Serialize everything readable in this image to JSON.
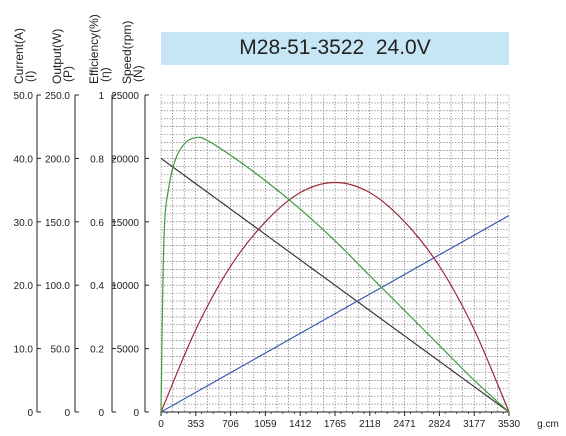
{
  "chart_data": {
    "type": "line",
    "title": "M28-51-3522  24.0V",
    "xlabel": "g.cm",
    "x_ticks": [
      "0",
      "353",
      "706",
      "1059",
      "1412",
      "1765",
      "2118",
      "2471",
      "2824",
      "3177",
      "3530"
    ],
    "xlim": [
      0,
      3530
    ],
    "grid": true,
    "axes": [
      {
        "label": "Current(A)",
        "symbol": "(I)",
        "ticks": [
          "0",
          "10.0",
          "20.0",
          "30.0",
          "40.0",
          "50.0"
        ],
        "range": [
          0,
          50
        ]
      },
      {
        "label": "Output(W)",
        "symbol": "(P)",
        "ticks": [
          "0",
          "50.0",
          "100.0",
          "150.0",
          "200.0",
          "250.0"
        ],
        "range": [
          0,
          250
        ]
      },
      {
        "label": "Efficiency(%)",
        "symbol": "(η)",
        "ticks": [
          "0",
          "0.2",
          "0.4",
          "0.6",
          "0.8",
          "1"
        ],
        "range": [
          0,
          1
        ]
      },
      {
        "label": "Speed(rpm)",
        "symbol": "(N)",
        "ticks": [
          "0",
          "5000",
          "10000",
          "15000",
          "20000",
          "25000"
        ],
        "range": [
          0,
          25000
        ]
      }
    ],
    "series": [
      {
        "key": "speed",
        "color": "#3a3a3a",
        "axis": 3,
        "x": [
          0,
          3530
        ],
        "y": [
          20000,
          0
        ]
      },
      {
        "key": "current",
        "color": "#3b5bb5",
        "axis": 0,
        "x": [
          0,
          3530
        ],
        "y": [
          0,
          31
        ]
      },
      {
        "key": "output",
        "color": "#9b2c3b",
        "axis": 1,
        "x": [
          0,
          353,
          706,
          1059,
          1412,
          1765,
          2118,
          2471,
          2824,
          3177,
          3530
        ],
        "y": [
          0,
          65,
          115,
          150,
          173,
          181,
          173,
          150,
          115,
          65,
          0
        ]
      },
      {
        "key": "efficiency",
        "color": "#3e9a3e",
        "axis": 2,
        "x": [
          0,
          30,
          80,
          150,
          250,
          350,
          450,
          706,
          1059,
          1412,
          1765,
          2118,
          2471,
          2824,
          3177,
          3530
        ],
        "y": [
          0,
          0.55,
          0.71,
          0.8,
          0.85,
          0.865,
          0.86,
          0.81,
          0.73,
          0.64,
          0.54,
          0.43,
          0.32,
          0.21,
          0.1,
          0
        ]
      }
    ]
  }
}
